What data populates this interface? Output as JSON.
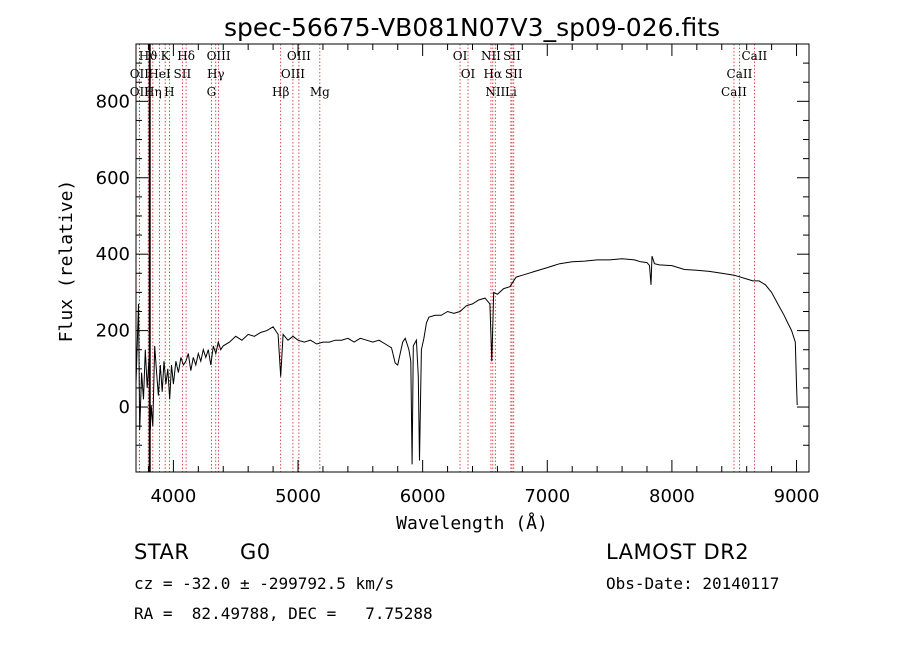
{
  "chart_data": {
    "type": "line",
    "title": "spec-56675-VB081N07V3_sp09-026.fits",
    "xlabel": "Wavelength (Å)",
    "ylabel": "Flux (relative)",
    "xlim": [
      3700,
      9100
    ],
    "ylim": [
      -170,
      950
    ],
    "xticks": [
      4000,
      5000,
      6000,
      7000,
      8000,
      9000
    ],
    "yticks": [
      0,
      200,
      400,
      600,
      800
    ],
    "grid": false,
    "series": [
      {
        "points": [
          [
            3700,
            60
          ],
          [
            3720,
            270
          ],
          [
            3730,
            -60
          ],
          [
            3745,
            90
          ],
          [
            3760,
            20
          ],
          [
            3775,
            150
          ],
          [
            3790,
            50
          ],
          [
            3805,
            130
          ],
          [
            3815,
            -60
          ],
          [
            3822,
            5
          ],
          [
            3835,
            -50
          ],
          [
            3850,
            160
          ],
          [
            3865,
            90
          ],
          [
            3880,
            30
          ],
          [
            3895,
            110
          ],
          [
            3910,
            40
          ],
          [
            3925,
            120
          ],
          [
            3940,
            60
          ],
          [
            3955,
            100
          ],
          [
            3970,
            20
          ],
          [
            3985,
            110
          ],
          [
            4000,
            60
          ],
          [
            4020,
            120
          ],
          [
            4040,
            90
          ],
          [
            4060,
            130
          ],
          [
            4080,
            110
          ],
          [
            4100,
            120
          ],
          [
            4120,
            140
          ],
          [
            4140,
            95
          ],
          [
            4160,
            130
          ],
          [
            4180,
            110
          ],
          [
            4200,
            140
          ],
          [
            4220,
            120
          ],
          [
            4240,
            150
          ],
          [
            4260,
            130
          ],
          [
            4280,
            150
          ],
          [
            4300,
            110
          ],
          [
            4320,
            160
          ],
          [
            4340,
            140
          ],
          [
            4360,
            170
          ],
          [
            4380,
            150
          ],
          [
            4400,
            160
          ],
          [
            4450,
            170
          ],
          [
            4500,
            185
          ],
          [
            4550,
            175
          ],
          [
            4600,
            190
          ],
          [
            4650,
            185
          ],
          [
            4700,
            195
          ],
          [
            4750,
            200
          ],
          [
            4800,
            210
          ],
          [
            4840,
            190
          ],
          [
            4861,
            80
          ],
          [
            4880,
            190
          ],
          [
            4920,
            175
          ],
          [
            4960,
            185
          ],
          [
            5000,
            175
          ],
          [
            5050,
            170
          ],
          [
            5100,
            175
          ],
          [
            5150,
            165
          ],
          [
            5200,
            170
          ],
          [
            5250,
            170
          ],
          [
            5300,
            175
          ],
          [
            5350,
            175
          ],
          [
            5400,
            180
          ],
          [
            5450,
            170
          ],
          [
            5500,
            180
          ],
          [
            5550,
            175
          ],
          [
            5600,
            170
          ],
          [
            5650,
            175
          ],
          [
            5700,
            165
          ],
          [
            5750,
            155
          ],
          [
            5780,
            115
          ],
          [
            5800,
            110
          ],
          [
            5820,
            140
          ],
          [
            5840,
            170
          ],
          [
            5860,
            180
          ],
          [
            5880,
            160
          ],
          [
            5890,
            150
          ],
          [
            5905,
            120
          ],
          [
            5915,
            -150
          ],
          [
            5925,
            160
          ],
          [
            5950,
            175
          ],
          [
            5965,
            80
          ],
          [
            5975,
            -140
          ],
          [
            5990,
            150
          ],
          [
            6010,
            180
          ],
          [
            6030,
            220
          ],
          [
            6050,
            235
          ],
          [
            6100,
            240
          ],
          [
            6150,
            240
          ],
          [
            6200,
            250
          ],
          [
            6250,
            245
          ],
          [
            6300,
            250
          ],
          [
            6350,
            265
          ],
          [
            6400,
            270
          ],
          [
            6450,
            280
          ],
          [
            6500,
            285
          ],
          [
            6540,
            270
          ],
          [
            6555,
            120
          ],
          [
            6570,
            300
          ],
          [
            6600,
            295
          ],
          [
            6650,
            310
          ],
          [
            6700,
            315
          ],
          [
            6750,
            340
          ],
          [
            6800,
            345
          ],
          [
            6850,
            350
          ],
          [
            6900,
            355
          ],
          [
            6950,
            360
          ],
          [
            7000,
            365
          ],
          [
            7050,
            370
          ],
          [
            7100,
            375
          ],
          [
            7200,
            380
          ],
          [
            7300,
            382
          ],
          [
            7400,
            385
          ],
          [
            7500,
            385
          ],
          [
            7600,
            388
          ],
          [
            7700,
            385
          ],
          [
            7750,
            380
          ],
          [
            7800,
            378
          ],
          [
            7820,
            370
          ],
          [
            7832,
            320
          ],
          [
            7840,
            395
          ],
          [
            7860,
            375
          ],
          [
            7900,
            372
          ],
          [
            8000,
            370
          ],
          [
            8100,
            360
          ],
          [
            8200,
            358
          ],
          [
            8300,
            355
          ],
          [
            8400,
            350
          ],
          [
            8500,
            345
          ],
          [
            8600,
            335
          ],
          [
            8650,
            330
          ],
          [
            8700,
            330
          ],
          [
            8750,
            320
          ],
          [
            8800,
            300
          ],
          [
            8850,
            270
          ],
          [
            8900,
            240
          ],
          [
            8930,
            220
          ],
          [
            8960,
            200
          ],
          [
            8990,
            170
          ],
          [
            9000,
            60
          ],
          [
            9005,
            5
          ]
        ]
      }
    ],
    "lines": [
      {
        "label": "Hϑ",
        "x": 3798,
        "row": 0
      },
      {
        "label": "K",
        "x": 3934,
        "row": 0
      },
      {
        "label": "Hδ",
        "x": 4102,
        "row": 0
      },
      {
        "label": "OIII",
        "x": 4363,
        "row": 0
      },
      {
        "label": "OIII",
        "x": 5007,
        "row": 0
      },
      {
        "label": "OI",
        "x": 6300,
        "row": 0
      },
      {
        "label": "NII",
        "x": 6548,
        "row": 0
      },
      {
        "label": "SII",
        "x": 6717,
        "row": 0
      },
      {
        "label": "CaII",
        "x": 8662,
        "row": 0
      },
      {
        "label": "OII",
        "x": 3727,
        "row": 1
      },
      {
        "label": "HeI",
        "x": 3889,
        "row": 1
      },
      {
        "label": "SII",
        "x": 4072,
        "row": 1
      },
      {
        "label": "Hγ",
        "x": 4340,
        "row": 1
      },
      {
        "label": "OIII",
        "x": 4959,
        "row": 1
      },
      {
        "label": "OI",
        "x": 6364,
        "row": 1
      },
      {
        "label": "Hα",
        "x": 6563,
        "row": 1
      },
      {
        "label": "SII",
        "x": 6731,
        "row": 1
      },
      {
        "label": "CaII",
        "x": 8542,
        "row": 1
      },
      {
        "label": "OII",
        "x": 3727,
        "row": 2
      },
      {
        "label": "Hη",
        "x": 3835,
        "row": 2
      },
      {
        "label": "H",
        "x": 3968,
        "row": 2
      },
      {
        "label": "G",
        "x": 4305,
        "row": 2
      },
      {
        "label": "Hβ",
        "x": 4861,
        "row": 2
      },
      {
        "label": "Mg",
        "x": 5175,
        "row": 2
      },
      {
        "label": "NII",
        "x": 6583,
        "row": 2
      },
      {
        "label": "Li",
        "x": 6708,
        "row": 2
      },
      {
        "label": "CaII",
        "x": 8498,
        "row": 2
      }
    ],
    "thick_line_x": 3810
  },
  "info": {
    "class_type": "STAR",
    "subclass": "G0",
    "survey": "LAMOST DR2",
    "cz": "cz = -32.0 ± -299792.5 km/s",
    "obs_date": "Obs-Date: 20140117",
    "radec": "RA =  82.49788, DEC =   7.75288"
  }
}
